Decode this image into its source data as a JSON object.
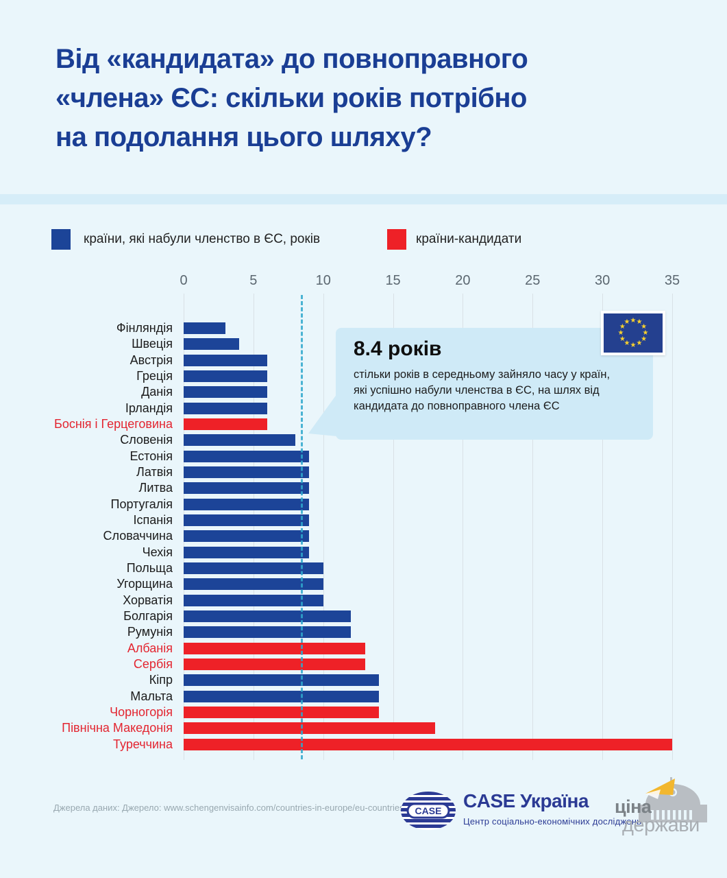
{
  "title": "Від «кандидата» до повноправного\n«члена» ЄС: скільки років потрібно\nна подолання цього шляху?",
  "legend": {
    "members": {
      "label": "країни, які набули членство в ЄС, років",
      "color": "#1c4498"
    },
    "candidates": {
      "label": "країни-кандидати",
      "color": "#ee2127"
    }
  },
  "chart_data": {
    "type": "bar",
    "orientation": "horizontal",
    "xlabel": "",
    "ylabel": "",
    "xlim": [
      0,
      35
    ],
    "x_ticks": [
      0,
      5,
      10,
      15,
      20,
      25,
      30,
      35
    ],
    "grid": true,
    "average_line": {
      "value": 8.4,
      "style": "dashed",
      "color": "#2fa8cd"
    },
    "group_colors": {
      "member": "#1c4498",
      "candidate": "#ee2127"
    },
    "rows": [
      {
        "label": "Фінляндія",
        "value": 3,
        "group": "member"
      },
      {
        "label": "Швеція",
        "value": 4,
        "group": "member"
      },
      {
        "label": "Австрія",
        "value": 6,
        "group": "member"
      },
      {
        "label": "Греція",
        "value": 6,
        "group": "member"
      },
      {
        "label": "Данія",
        "value": 6,
        "group": "member"
      },
      {
        "label": "Ірландія",
        "value": 6,
        "group": "member"
      },
      {
        "label": "Боснія і Герцеговина",
        "value": 6,
        "group": "candidate"
      },
      {
        "label": "Словенія",
        "value": 8,
        "group": "member"
      },
      {
        "label": "Естонія",
        "value": 9,
        "group": "member"
      },
      {
        "label": "Латвія",
        "value": 9,
        "group": "member"
      },
      {
        "label": "Литва",
        "value": 9,
        "group": "member"
      },
      {
        "label": "Португалія",
        "value": 9,
        "group": "member"
      },
      {
        "label": "Іспанія",
        "value": 9,
        "group": "member"
      },
      {
        "label": "Словаччина",
        "value": 9,
        "group": "member"
      },
      {
        "label": "Чехія",
        "value": 9,
        "group": "member"
      },
      {
        "label": "Польща",
        "value": 10,
        "group": "member"
      },
      {
        "label": "Угорщина",
        "value": 10,
        "group": "member"
      },
      {
        "label": "Хорватія",
        "value": 10,
        "group": "member"
      },
      {
        "label": "Болгарія",
        "value": 12,
        "group": "member"
      },
      {
        "label": "Румунія",
        "value": 12,
        "group": "member"
      },
      {
        "label": "Албанія",
        "value": 13,
        "group": "candidate"
      },
      {
        "label": "Сербія",
        "value": 13,
        "group": "candidate"
      },
      {
        "label": "Кіпр",
        "value": 14,
        "group": "member"
      },
      {
        "label": "Мальта",
        "value": 14,
        "group": "member"
      },
      {
        "label": "Чорногорія",
        "value": 14,
        "group": "candidate"
      },
      {
        "label": "Північна Македонія",
        "value": 18,
        "group": "candidate"
      },
      {
        "label": "Туреччина",
        "value": 35,
        "group": "candidate"
      }
    ]
  },
  "callout": {
    "title": "8.4 років",
    "body": "стільки років в середньому зайняло часу у країн,\nякі успішно набули членства в ЄС, на шлях від\nкандидата до повноправного члена ЄС"
  },
  "eu_flag": {
    "stars": 12,
    "bg": "#24408f",
    "star_color": "#f8d12e",
    "star_glyph": "★"
  },
  "footer": {
    "source": "Джерела даних: Джерело: www.schengenvisainfo.com/countries-in-europe/eu-countries/"
  },
  "logos": {
    "case": {
      "icon_text": "CASE",
      "name": "CASE Україна",
      "subtitle": "Центр соціально-економічних досліджень"
    },
    "price_of_state": {
      "line1": "ціна",
      "line2": "держави"
    }
  }
}
